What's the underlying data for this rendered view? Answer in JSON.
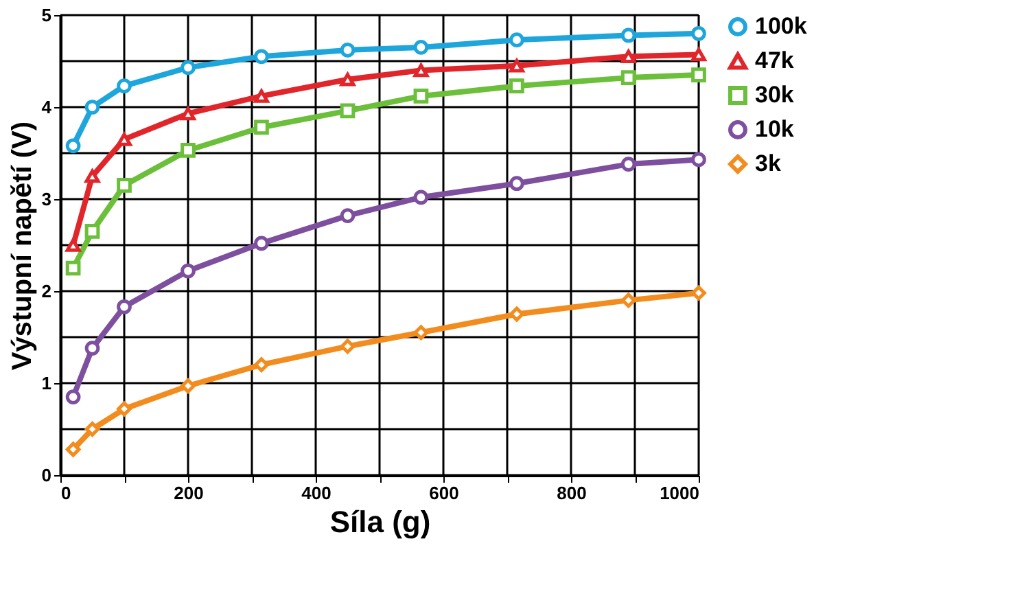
{
  "chart_data": {
    "type": "line",
    "xlabel": "Síla (g)",
    "ylabel": "Výstupní napětí (V)",
    "x": [
      20,
      50,
      100,
      200,
      315,
      450,
      565,
      715,
      890,
      1000
    ],
    "xlim": [
      0,
      1000
    ],
    "ylim": [
      0,
      5
    ],
    "xticks": [
      0,
      {
        "value": 100,
        "label": null
      },
      200,
      {
        "value": 300,
        "label": null
      },
      400,
      {
        "value": 500,
        "label": null
      },
      600,
      {
        "value": 700,
        "label": null
      },
      800,
      {
        "value": 900,
        "label": null
      },
      1000
    ],
    "yticks": [
      0,
      {
        "value": 0.5,
        "label": null
      },
      1,
      {
        "value": 1.5,
        "label": null
      },
      2,
      {
        "value": 2.5,
        "label": null
      },
      3,
      {
        "value": 3.5,
        "label": null
      },
      4,
      {
        "value": 4.5,
        "label": null
      },
      5
    ],
    "grid": true,
    "legend": "right",
    "line_style": "solid",
    "series": [
      {
        "name": "100k",
        "color": "#1ea6dc",
        "marker": "circle",
        "values": [
          3.58,
          4.0,
          4.23,
          4.43,
          4.55,
          4.62,
          4.65,
          4.73,
          4.78,
          4.8
        ]
      },
      {
        "name": "47k",
        "color": "#e0262a",
        "marker": "triangle",
        "values": [
          2.5,
          3.25,
          3.65,
          3.93,
          4.12,
          4.3,
          4.4,
          4.45,
          4.55,
          4.57
        ]
      },
      {
        "name": "30k",
        "color": "#6cbf3a",
        "marker": "square",
        "values": [
          2.25,
          2.65,
          3.15,
          3.53,
          3.78,
          3.96,
          4.12,
          4.23,
          4.32,
          4.35
        ]
      },
      {
        "name": "10k",
        "color": "#7d4f9e",
        "marker": "circle",
        "values": [
          0.85,
          1.38,
          1.83,
          2.22,
          2.52,
          2.82,
          3.02,
          3.17,
          3.38,
          3.43
        ]
      },
      {
        "name": "3k",
        "color": "#f28c1e",
        "marker": "diamond",
        "values": [
          0.28,
          0.5,
          0.72,
          0.97,
          1.2,
          1.4,
          1.55,
          1.75,
          1.9,
          1.98
        ]
      }
    ]
  }
}
